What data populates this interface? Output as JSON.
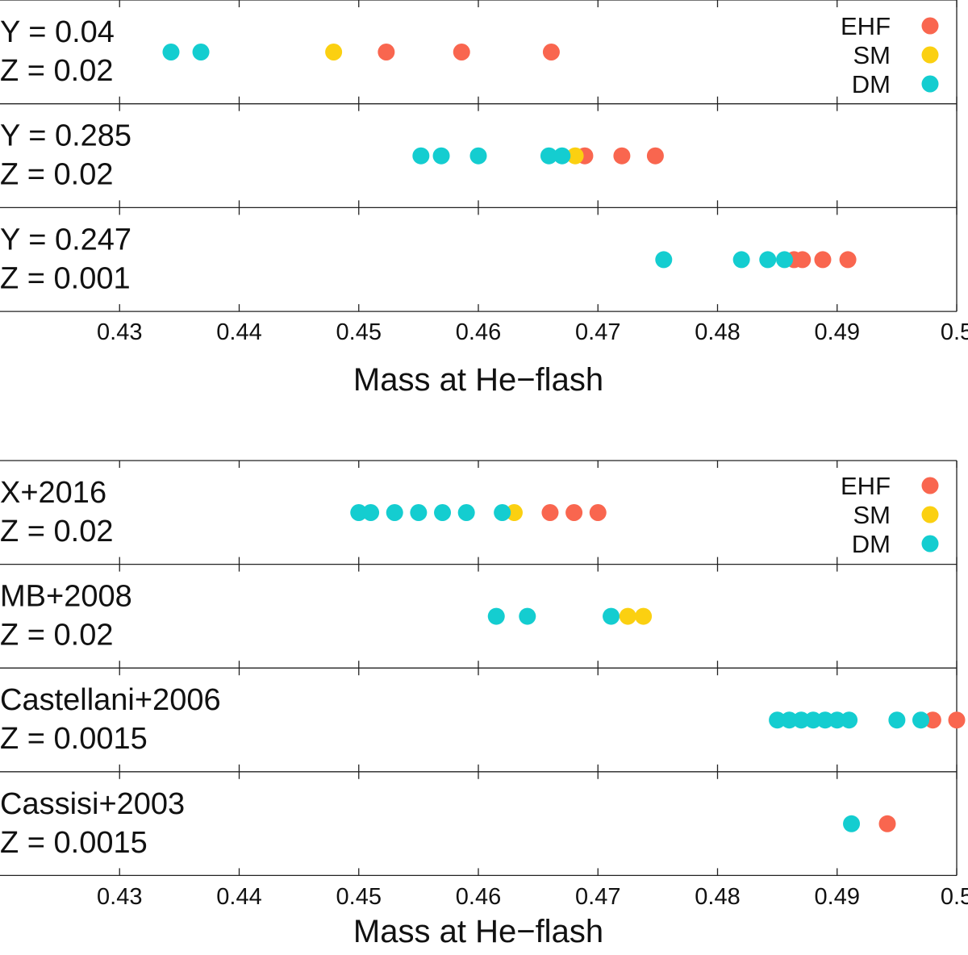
{
  "colors": {
    "EHF": "#F9664F",
    "SM": "#FBD011",
    "DM": "#14CDD0",
    "axis": "#222222"
  },
  "chart_data": [
    {
      "type": "scatter",
      "xlabel": "Mass at He−flash",
      "xlim": [
        0.42,
        0.5
      ],
      "xticks": [
        0.43,
        0.44,
        0.45,
        0.46,
        0.47,
        0.48,
        0.49,
        0.5
      ],
      "xtick_labels": [
        "0.43",
        "0.44",
        "0.45",
        "0.46",
        "0.47",
        "0.48",
        "0.49",
        "0.5"
      ],
      "legend": {
        "position": "top-right",
        "entries": [
          "EHF",
          "SM",
          "DM"
        ]
      },
      "rows": [
        {
          "label1": "Y = 0.04",
          "label2": "Z = 0.02",
          "points": [
            {
              "x": 0.4343,
              "class": "DM"
            },
            {
              "x": 0.4368,
              "class": "DM"
            },
            {
              "x": 0.4479,
              "class": "SM"
            },
            {
              "x": 0.4523,
              "class": "EHF"
            },
            {
              "x": 0.4586,
              "class": "EHF"
            },
            {
              "x": 0.4661,
              "class": "EHF"
            }
          ]
        },
        {
          "label1": "Y = 0.285",
          "label2": "Z = 0.02",
          "points": [
            {
              "x": 0.4552,
              "class": "DM"
            },
            {
              "x": 0.4569,
              "class": "DM"
            },
            {
              "x": 0.46,
              "class": "DM"
            },
            {
              "x": 0.4689,
              "class": "EHF"
            },
            {
              "x": 0.4681,
              "class": "SM"
            },
            {
              "x": 0.4659,
              "class": "DM"
            },
            {
              "x": 0.467,
              "class": "DM"
            },
            {
              "x": 0.472,
              "class": "EHF"
            },
            {
              "x": 0.4748,
              "class": "EHF"
            }
          ]
        },
        {
          "label1": "Y = 0.247",
          "label2": "Z = 0.001",
          "points": [
            {
              "x": 0.4755,
              "class": "DM"
            },
            {
              "x": 0.482,
              "class": "DM"
            },
            {
              "x": 0.4842,
              "class": "DM"
            },
            {
              "x": 0.4871,
              "class": "EHF"
            },
            {
              "x": 0.4864,
              "class": "EHF"
            },
            {
              "x": 0.4856,
              "class": "DM"
            },
            {
              "x": 0.4888,
              "class": "EHF"
            },
            {
              "x": 0.4909,
              "class": "EHF"
            }
          ]
        }
      ]
    },
    {
      "type": "scatter",
      "xlabel": "Mass at He−flash",
      "xlim": [
        0.42,
        0.5
      ],
      "xticks": [
        0.43,
        0.44,
        0.45,
        0.46,
        0.47,
        0.48,
        0.49,
        0.5
      ],
      "xtick_labels": [
        "0.43",
        "0.44",
        "0.45",
        "0.46",
        "0.47",
        "0.48",
        "0.49",
        "0.5"
      ],
      "legend": {
        "position": "top-right",
        "entries": [
          "EHF",
          "SM",
          "DM"
        ]
      },
      "rows": [
        {
          "label1": "X+2016",
          "label2": "Z = 0.02",
          "points": [
            {
              "x": 0.45,
              "class": "DM"
            },
            {
              "x": 0.451,
              "class": "DM"
            },
            {
              "x": 0.453,
              "class": "DM"
            },
            {
              "x": 0.455,
              "class": "DM"
            },
            {
              "x": 0.457,
              "class": "DM"
            },
            {
              "x": 0.459,
              "class": "DM"
            },
            {
              "x": 0.463,
              "class": "SM"
            },
            {
              "x": 0.462,
              "class": "DM"
            },
            {
              "x": 0.466,
              "class": "EHF"
            },
            {
              "x": 0.468,
              "class": "EHF"
            },
            {
              "x": 0.47,
              "class": "EHF"
            }
          ]
        },
        {
          "label1": "MB+2008",
          "label2": "Z = 0.02",
          "points": [
            {
              "x": 0.4615,
              "class": "DM"
            },
            {
              "x": 0.4641,
              "class": "DM"
            },
            {
              "x": 0.4711,
              "class": "DM"
            },
            {
              "x": 0.4725,
              "class": "SM"
            },
            {
              "x": 0.4738,
              "class": "SM"
            }
          ]
        },
        {
          "label1": "Castellani+2006",
          "label2": "Z = 0.0015",
          "points": [
            {
              "x": 0.485,
              "class": "DM"
            },
            {
              "x": 0.486,
              "class": "DM"
            },
            {
              "x": 0.487,
              "class": "DM"
            },
            {
              "x": 0.488,
              "class": "DM"
            },
            {
              "x": 0.489,
              "class": "DM"
            },
            {
              "x": 0.49,
              "class": "DM"
            },
            {
              "x": 0.491,
              "class": "DM"
            },
            {
              "x": 0.495,
              "class": "DM"
            },
            {
              "x": 0.498,
              "class": "EHF"
            },
            {
              "x": 0.497,
              "class": "DM"
            },
            {
              "x": 0.5,
              "class": "EHF"
            }
          ]
        },
        {
          "label1": "Cassisi+2003",
          "label2": "Z = 0.0015",
          "points": [
            {
              "x": 0.4912,
              "class": "DM"
            },
            {
              "x": 0.4942,
              "class": "EHF"
            }
          ]
        }
      ]
    }
  ]
}
